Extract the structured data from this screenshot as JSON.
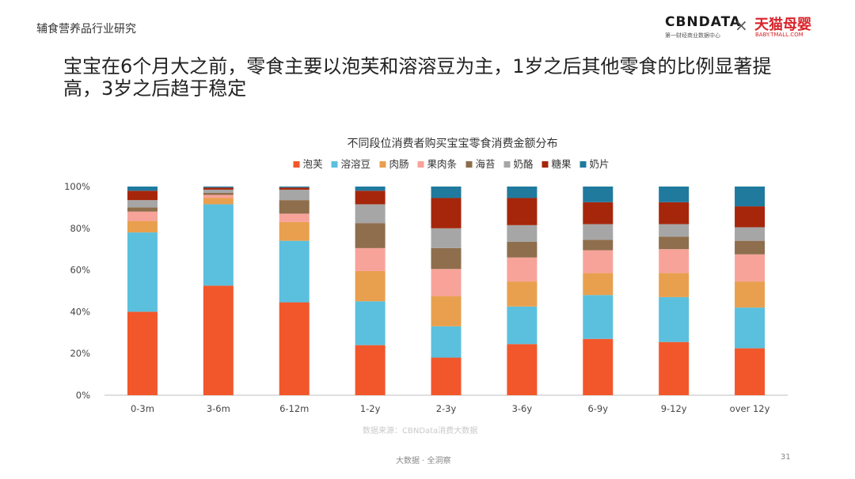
{
  "header": {
    "section_label": "辅食营养品行业研究",
    "logo_cbn": "CBNDATA",
    "logo_cbn_sub": "第一财经商业数据中心",
    "logo_times": "×",
    "logo_tmall": "天猫母婴",
    "logo_tmall_sub": "BABY.TMALL.COM"
  },
  "headline": "宝宝在6个月大之前，零食主要以泡芙和溶溶豆为主，1岁之后其他零食的比例显著提高，3岁之后趋于稳定",
  "chart_data": {
    "type": "bar",
    "stacked": true,
    "title": "不同段位消费者购买宝宝零食消费金额分布",
    "categories": [
      "0-3m",
      "3-6m",
      "6-12m",
      "1-2y",
      "2-3y",
      "3-6y",
      "6-9y",
      "9-12y",
      "over 12y"
    ],
    "y_ticks": [
      "0%",
      "20%",
      "40%",
      "60%",
      "80%",
      "100%"
    ],
    "ylim": [
      0,
      100
    ],
    "legend_position": "top",
    "grid": false,
    "series": [
      {
        "name": "泡芙",
        "color": "#F2572B",
        "values": [
          40,
          52.5,
          44.5,
          24,
          18,
          24.5,
          27,
          25.5,
          22.5
        ]
      },
      {
        "name": "溶溶豆",
        "color": "#5BC0DE",
        "values": [
          38,
          39,
          29.5,
          21,
          15,
          18,
          21,
          21.5,
          19.5
        ]
      },
      {
        "name": "肉肠",
        "color": "#E8A04E",
        "values": [
          5.5,
          3,
          9,
          14.5,
          14.5,
          12,
          10.5,
          11.5,
          12.5
        ]
      },
      {
        "name": "果肉条",
        "color": "#F7A39A",
        "values": [
          4.5,
          1.5,
          4,
          11,
          13,
          11.5,
          11,
          11.5,
          13
        ]
      },
      {
        "name": "海苔",
        "color": "#8E6E4C",
        "values": [
          2,
          1,
          6.5,
          12,
          10,
          7.5,
          5,
          6,
          6.5
        ]
      },
      {
        "name": "奶酪",
        "color": "#A6A6A6",
        "values": [
          3.5,
          1.5,
          5,
          9,
          9.5,
          8,
          7.5,
          6,
          6.5
        ]
      },
      {
        "name": "糖果",
        "color": "#A6260B",
        "values": [
          4.5,
          1,
          1,
          6.5,
          14.5,
          13,
          10.5,
          10.5,
          10
        ]
      },
      {
        "name": "奶片",
        "color": "#1F7A9E",
        "values": [
          2,
          0.5,
          0.5,
          2,
          5.5,
          5.5,
          7.5,
          7.5,
          9.5
        ]
      }
    ]
  },
  "footer": {
    "source": "数据来源：CBNData消费大数据",
    "slogan": "大数据 · 全洞察",
    "page_number": "31"
  }
}
